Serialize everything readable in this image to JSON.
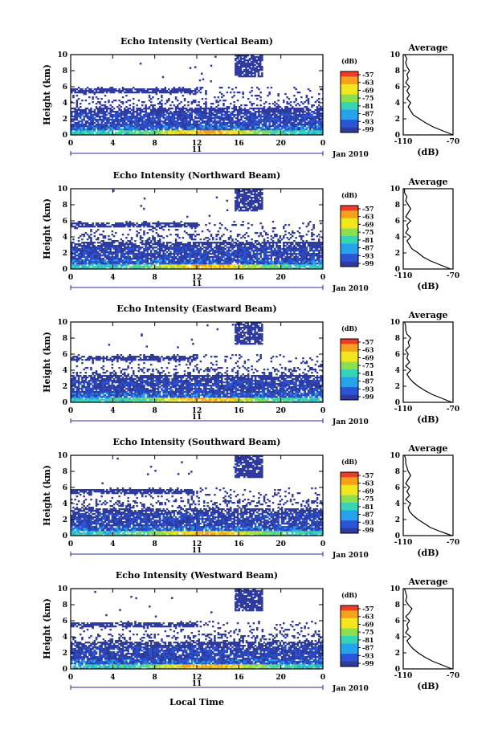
{
  "chart_data": {
    "type": "heatmap",
    "shared": {
      "xlabel": "Local Time",
      "ylabel": "Height (km)",
      "x_ticks": [
        "0",
        "4",
        "8",
        "12",
        "16",
        "20",
        "0"
      ],
      "xlim": [
        0,
        24
      ],
      "y_ticks": [
        "0",
        "2",
        "4",
        "6",
        "8",
        "10"
      ],
      "ylim": [
        0,
        10
      ],
      "date_day": "11",
      "date_month_year": "Jan 2010",
      "colorbar_unit": "(dB)",
      "colorbar_ticks": [
        "-57",
        "-63",
        "-69",
        "-75",
        "-81",
        "-87",
        "-93",
        "-99"
      ],
      "colorbar_colors": [
        "#f03a2a",
        "#f6a11d",
        "#f2e71f",
        "#8ddf4e",
        "#37d4b6",
        "#25a3eb",
        "#2a55d6",
        "#2e3a9e"
      ],
      "profile_title": "Average",
      "profile_xlabel": "(dB)",
      "profile_x_ticks": [
        "-110",
        "-70"
      ],
      "profile_xlim": [
        -110,
        -70
      ]
    },
    "panels": [
      {
        "title": "Echo Intensity (Vertical Beam)",
        "profile_heights": [
          0,
          0.5,
          1,
          1.5,
          2,
          2.5,
          3,
          3.5,
          4,
          4.5,
          5,
          5.5,
          6,
          6.5,
          7,
          7.5,
          8,
          8.5,
          9,
          9.5,
          10
        ],
        "profile_values": [
          -70,
          -78,
          -86,
          -92,
          -97,
          -102,
          -104,
          -106,
          -104,
          -107,
          -105,
          -107,
          -105,
          -108,
          -106,
          -107,
          -105,
          -107,
          -108,
          -107,
          -109
        ]
      },
      {
        "title": "Echo Intensity (Northward Beam)",
        "profile_heights": [
          0,
          0.5,
          1,
          1.5,
          2,
          2.5,
          3,
          3.5,
          4,
          4.5,
          5,
          5.5,
          6,
          6.5,
          7,
          7.5,
          8,
          8.5,
          9,
          9.5,
          10
        ],
        "profile_values": [
          -72,
          -80,
          -88,
          -94,
          -98,
          -103,
          -105,
          -107,
          -104,
          -108,
          -106,
          -107,
          -104,
          -108,
          -106,
          -104,
          -106,
          -108,
          -107,
          -109,
          -109
        ]
      },
      {
        "title": "Echo Intensity (Eastward Beam)",
        "profile_heights": [
          0,
          0.5,
          1,
          1.5,
          2,
          2.5,
          3,
          3.5,
          4,
          4.5,
          5,
          5.5,
          6,
          6.5,
          7,
          7.5,
          8,
          8.5,
          9,
          9.5,
          10
        ],
        "profile_values": [
          -71,
          -79,
          -87,
          -93,
          -98,
          -102,
          -105,
          -107,
          -104,
          -108,
          -105,
          -107,
          -106,
          -108,
          -105,
          -106,
          -104,
          -107,
          -108,
          -108,
          -109
        ]
      },
      {
        "title": "Echo Intensity (Southward Beam)",
        "profile_heights": [
          0,
          0.5,
          1,
          1.5,
          2,
          2.5,
          3,
          3.5,
          4,
          4.5,
          5,
          5.5,
          6,
          6.5,
          7,
          7.5,
          8,
          8.5,
          9,
          9.5,
          10
        ],
        "profile_values": [
          -71,
          -80,
          -88,
          -93,
          -98,
          -102,
          -105,
          -106,
          -104,
          -108,
          -105,
          -107,
          -105,
          -108,
          -106,
          -104,
          -106,
          -107,
          -108,
          -108,
          -109
        ]
      },
      {
        "title": "Echo Intensity (Westward Beam)",
        "profile_heights": [
          0,
          0.5,
          1,
          1.5,
          2,
          2.5,
          3,
          3.5,
          4,
          4.5,
          5,
          5.5,
          6,
          6.5,
          7,
          7.5,
          8,
          8.5,
          9,
          9.5,
          10
        ],
        "profile_values": [
          -71,
          -79,
          -87,
          -93,
          -98,
          -102,
          -105,
          -107,
          -104,
          -108,
          -106,
          -107,
          -105,
          -108,
          -105,
          -103,
          -106,
          -108,
          -107,
          -108,
          -109
        ]
      }
    ]
  }
}
